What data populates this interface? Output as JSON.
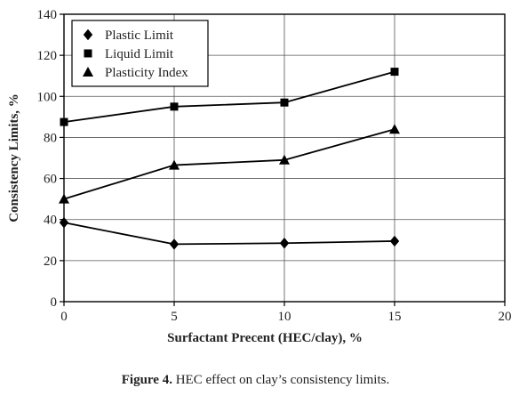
{
  "chart_data": {
    "type": "line",
    "x": [
      0,
      5,
      10,
      15
    ],
    "series": [
      {
        "name": "Plastic Limit",
        "marker": "diamond",
        "values": [
          38.5,
          28,
          28.5,
          29.5
        ]
      },
      {
        "name": "Liquid Limit",
        "marker": "square",
        "values": [
          87.5,
          95,
          97,
          112
        ]
      },
      {
        "name": "Plasticity Index",
        "marker": "triangle",
        "values": [
          50,
          66.5,
          69,
          84
        ]
      }
    ],
    "xlabel": "Surfactant Precent (HEC/clay), %",
    "ylabel": "Consistency Limits, %",
    "xlim": [
      0,
      20
    ],
    "ylim": [
      0,
      140
    ],
    "xticks": [
      0,
      5,
      10,
      15,
      20
    ],
    "yticks": [
      0,
      20,
      40,
      60,
      80,
      100,
      120,
      140
    ],
    "grid": true,
    "legend_position": "top-left",
    "line_color": "#000000"
  },
  "caption": {
    "label": "Figure 4.",
    "text": " HEC effect on clay’s consistency limits."
  }
}
